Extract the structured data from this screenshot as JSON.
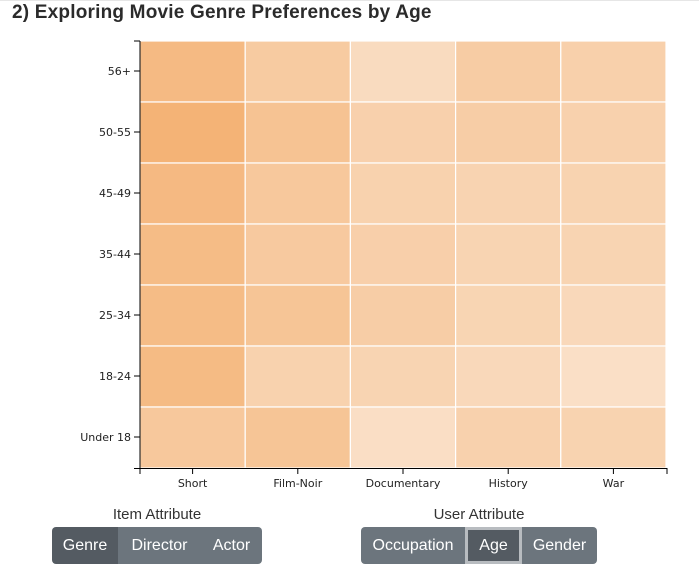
{
  "title": "2) Exploring Movie Genre Preferences by Age",
  "chart_data": {
    "type": "heatmap",
    "title": "",
    "xlabel": "",
    "ylabel": "",
    "x_categories": [
      "Short",
      "Film-Noir",
      "Documentary",
      "History",
      "War"
    ],
    "y_categories": [
      "56+",
      "50-55",
      "45-49",
      "35-44",
      "25-34",
      "18-24",
      "Under 18"
    ],
    "color_scale": {
      "low": "#fbe8d7",
      "high": "#f3ad6b"
    },
    "values": [
      [
        0.78,
        0.5,
        0.22,
        0.47,
        0.41
      ],
      [
        0.9,
        0.63,
        0.4,
        0.45,
        0.39
      ],
      [
        0.79,
        0.55,
        0.38,
        0.35,
        0.36
      ],
      [
        0.75,
        0.52,
        0.42,
        0.34,
        0.34
      ],
      [
        0.75,
        0.6,
        0.45,
        0.33,
        0.27
      ],
      [
        0.77,
        0.38,
        0.34,
        0.27,
        0.16
      ],
      [
        0.55,
        0.6,
        0.17,
        0.39,
        0.36
      ]
    ]
  },
  "item_attribute": {
    "caption": "Item Attribute",
    "buttons": [
      "Genre",
      "Director",
      "Actor"
    ],
    "selected": "Genre"
  },
  "user_attribute": {
    "caption": "User Attribute",
    "buttons": [
      "Occupation",
      "Age",
      "Gender"
    ],
    "selected": "Age"
  },
  "colors": {
    "button": "#6c757d",
    "button_active": "#545b62",
    "focus_ring": "#b8bcc0"
  }
}
